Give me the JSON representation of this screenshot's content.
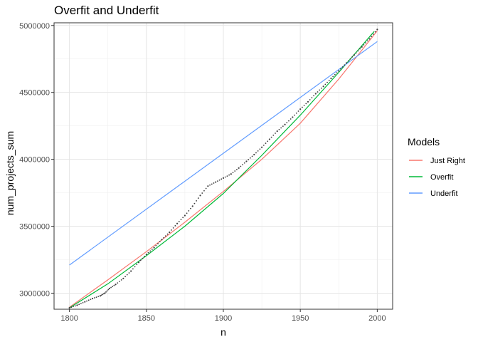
{
  "chart_data": {
    "type": "line",
    "title": "Overfit and Underfit",
    "xlabel": "n",
    "ylabel": "num_projects_sum",
    "xlim": [
      1790,
      2010
    ],
    "ylim": [
      2880000,
      5020000
    ],
    "x_ticks": [
      1800,
      1850,
      1900,
      1950,
      2000
    ],
    "x_tick_labels": [
      "1800",
      "1850",
      "1900",
      "1950",
      "2000"
    ],
    "y_ticks": [
      3000000,
      3500000,
      4000000,
      4500000,
      5000000
    ],
    "y_tick_labels": [
      "3000000",
      "3500000",
      "4000000",
      "4500000",
      "5000000"
    ],
    "grid": true,
    "legend": {
      "title": "Models",
      "position": "right"
    },
    "observed": {
      "style": "dotted points",
      "color": "#404040",
      "x": [
        1800,
        1805,
        1810,
        1815,
        1820,
        1823,
        1826,
        1830,
        1835,
        1840,
        1845,
        1850,
        1855,
        1860,
        1865,
        1870,
        1875,
        1880,
        1885,
        1890,
        1895,
        1900,
        1905,
        1910,
        1915,
        1920,
        1925,
        1930,
        1935,
        1940,
        1945,
        1950,
        1955,
        1960,
        1965,
        1970,
        1975,
        1980,
        1985,
        1990,
        1995,
        2000
      ],
      "y": [
        2890000,
        2910000,
        2935000,
        2960000,
        2980000,
        3000000,
        3035000,
        3065000,
        3110000,
        3165000,
        3230000,
        3290000,
        3340000,
        3400000,
        3455000,
        3520000,
        3580000,
        3650000,
        3730000,
        3800000,
        3830000,
        3860000,
        3890000,
        3935000,
        3985000,
        4035000,
        4090000,
        4150000,
        4210000,
        4260000,
        4315000,
        4375000,
        4430000,
        4490000,
        4545000,
        4605000,
        4660000,
        4720000,
        4780000,
        4840000,
        4900000,
        4970000
      ]
    },
    "series": [
      {
        "name": "Just Right",
        "color": "#F8766D",
        "x": [
          1800,
          1825,
          1850,
          1875,
          1900,
          1925,
          1950,
          1975,
          2000
        ],
        "y": [
          2895000,
          3100000,
          3310000,
          3530000,
          3760000,
          4000000,
          4270000,
          4600000,
          4960000
        ]
      },
      {
        "name": "Overfit",
        "color": "#00BA38",
        "x": [
          1800,
          1825,
          1850,
          1875,
          1900,
          1925,
          1950,
          1975,
          1998
        ],
        "y": [
          2890000,
          3070000,
          3280000,
          3500000,
          3745000,
          4030000,
          4330000,
          4650000,
          4955000
        ]
      },
      {
        "name": "Underfit",
        "color": "#619CFF",
        "x": [
          1800,
          2000
        ],
        "y": [
          3210000,
          4880000
        ]
      }
    ]
  }
}
